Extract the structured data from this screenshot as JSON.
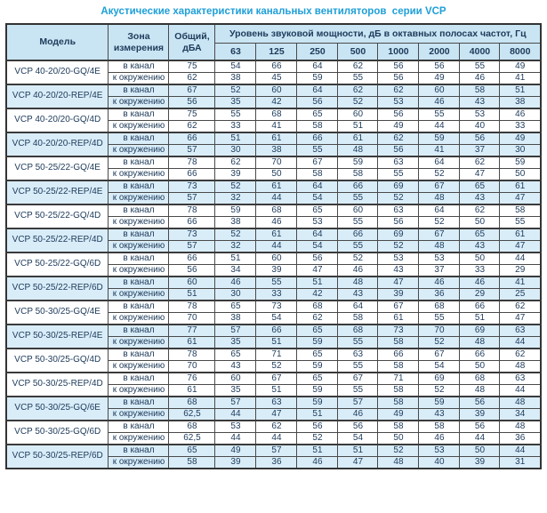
{
  "title": "Акустические характеристики канальных вентиляторов  серии VCP",
  "colors": {
    "title": "#1e9fd8",
    "header_bg": "#c9e5f4",
    "highlight_bg": "#d9edf9",
    "border": "#4a4a4a",
    "text": "#1d3a5a"
  },
  "table": {
    "headers": {
      "model": "Модель",
      "zone": "Зона измерения",
      "total": "Общий, дБА",
      "spl": "Уровень звуковой мощности, дБ в октавных полосах частот, Гц",
      "frequencies": [
        "63",
        "125",
        "250",
        "500",
        "1000",
        "2000",
        "4000",
        "8000"
      ]
    },
    "zone_labels": [
      "в канал",
      "к окружению"
    ],
    "rows": [
      {
        "model": "VCP 40-20/20-GQ/4E",
        "highlight": false,
        "duct": {
          "total": "75",
          "bands": [
            "54",
            "66",
            "64",
            "62",
            "56",
            "56",
            "55",
            "49"
          ]
        },
        "ambient": {
          "total": "62",
          "bands": [
            "38",
            "45",
            "59",
            "55",
            "56",
            "49",
            "46",
            "41"
          ]
        }
      },
      {
        "model": "VCP 40-20/20-REP/4E",
        "highlight": true,
        "duct": {
          "total": "67",
          "bands": [
            "52",
            "60",
            "64",
            "62",
            "62",
            "60",
            "58",
            "51"
          ]
        },
        "ambient": {
          "total": "56",
          "bands": [
            "35",
            "42",
            "56",
            "52",
            "53",
            "46",
            "43",
            "38"
          ]
        }
      },
      {
        "model": "VCP 40-20/20-GQ/4D",
        "highlight": false,
        "duct": {
          "total": "75",
          "bands": [
            "55",
            "68",
            "65",
            "60",
            "56",
            "55",
            "53",
            "46"
          ]
        },
        "ambient": {
          "total": "62",
          "bands": [
            "33",
            "41",
            "58",
            "51",
            "49",
            "44",
            "40",
            "33"
          ]
        }
      },
      {
        "model": "VCP 40-20/20-REP/4D",
        "highlight": true,
        "duct": {
          "total": "66",
          "bands": [
            "51",
            "61",
            "66",
            "61",
            "62",
            "59",
            "56",
            "49"
          ]
        },
        "ambient": {
          "total": "57",
          "bands": [
            "30",
            "38",
            "55",
            "48",
            "56",
            "41",
            "37",
            "30"
          ]
        }
      },
      {
        "model": "VCP 50-25/22-GQ/4E",
        "highlight": false,
        "duct": {
          "total": "78",
          "bands": [
            "62",
            "70",
            "67",
            "59",
            "63",
            "64",
            "62",
            "59"
          ]
        },
        "ambient": {
          "total": "66",
          "bands": [
            "39",
            "50",
            "58",
            "58",
            "55",
            "52",
            "47",
            "50"
          ]
        }
      },
      {
        "model": "VCP 50-25/22-REP/4E",
        "highlight": true,
        "duct": {
          "total": "73",
          "bands": [
            "52",
            "61",
            "64",
            "66",
            "69",
            "67",
            "65",
            "61"
          ]
        },
        "ambient": {
          "total": "57",
          "bands": [
            "32",
            "44",
            "54",
            "55",
            "52",
            "48",
            "43",
            "47"
          ]
        }
      },
      {
        "model": "VCP 50-25/22-GQ/4D",
        "highlight": false,
        "duct": {
          "total": "78",
          "bands": [
            "59",
            "68",
            "65",
            "60",
            "63",
            "64",
            "62",
            "58"
          ]
        },
        "ambient": {
          "total": "66",
          "bands": [
            "38",
            "46",
            "53",
            "55",
            "56",
            "52",
            "50",
            "55"
          ]
        }
      },
      {
        "model": "VCP 50-25/22-REP/4D",
        "highlight": true,
        "duct": {
          "total": "73",
          "bands": [
            "52",
            "61",
            "64",
            "66",
            "69",
            "67",
            "65",
            "61"
          ]
        },
        "ambient": {
          "total": "57",
          "bands": [
            "32",
            "44",
            "54",
            "55",
            "52",
            "48",
            "43",
            "47"
          ]
        }
      },
      {
        "model": "VCP 50-25/22-GQ/6D",
        "highlight": false,
        "duct": {
          "total": "66",
          "bands": [
            "51",
            "60",
            "56",
            "52",
            "53",
            "53",
            "50",
            "44"
          ]
        },
        "ambient": {
          "total": "56",
          "bands": [
            "34",
            "39",
            "47",
            "46",
            "43",
            "37",
            "33",
            "29"
          ]
        }
      },
      {
        "model": "VCP 50-25/22-REP/6D",
        "highlight": true,
        "duct": {
          "total": "60",
          "bands": [
            "46",
            "55",
            "51",
            "48",
            "47",
            "46",
            "46",
            "41"
          ]
        },
        "ambient": {
          "total": "51",
          "bands": [
            "30",
            "33",
            "42",
            "43",
            "39",
            "36",
            "29",
            "25"
          ]
        }
      },
      {
        "model": "VCP 50-30/25-GQ/4E",
        "highlight": false,
        "duct": {
          "total": "78",
          "bands": [
            "65",
            "73",
            "68",
            "64",
            "67",
            "68",
            "66",
            "62"
          ]
        },
        "ambient": {
          "total": "70",
          "bands": [
            "38",
            "54",
            "62",
            "58",
            "61",
            "55",
            "51",
            "47"
          ]
        }
      },
      {
        "model": "VCP 50-30/25-REP/4E",
        "highlight": true,
        "duct": {
          "total": "77",
          "bands": [
            "57",
            "66",
            "65",
            "68",
            "73",
            "70",
            "69",
            "63"
          ]
        },
        "ambient": {
          "total": "61",
          "bands": [
            "35",
            "51",
            "59",
            "55",
            "58",
            "52",
            "48",
            "44"
          ]
        }
      },
      {
        "model": "VCP 50-30/25-GQ/4D",
        "highlight": false,
        "duct": {
          "total": "78",
          "bands": [
            "65",
            "71",
            "65",
            "63",
            "66",
            "67",
            "66",
            "62"
          ]
        },
        "ambient": {
          "total": "70",
          "bands": [
            "43",
            "52",
            "59",
            "55",
            "58",
            "54",
            "50",
            "48"
          ]
        }
      },
      {
        "model": "VCP 50-30/25-REP/4D",
        "highlight": false,
        "duct": {
          "total": "76",
          "bands": [
            "60",
            "67",
            "65",
            "67",
            "71",
            "69",
            "68",
            "63"
          ]
        },
        "ambient": {
          "total": "61",
          "bands": [
            "35",
            "51",
            "59",
            "55",
            "58",
            "52",
            "48",
            "44"
          ]
        }
      },
      {
        "model": "VCP 50-30/25-GQ/6E",
        "highlight": true,
        "duct": {
          "total": "68",
          "bands": [
            "57",
            "63",
            "59",
            "57",
            "58",
            "59",
            "56",
            "48"
          ]
        },
        "ambient": {
          "total": "62,5",
          "bands": [
            "44",
            "47",
            "51",
            "46",
            "49",
            "43",
            "39",
            "34"
          ]
        }
      },
      {
        "model": "VCP 50-30/25-GQ/6D",
        "highlight": false,
        "duct": {
          "total": "68",
          "bands": [
            "53",
            "62",
            "56",
            "56",
            "58",
            "58",
            "56",
            "48"
          ]
        },
        "ambient": {
          "total": "62,5",
          "bands": [
            "44",
            "44",
            "52",
            "54",
            "50",
            "46",
            "44",
            "36"
          ]
        }
      },
      {
        "model": "VCP 50-30/25-REP/6D",
        "highlight": true,
        "duct": {
          "total": "65",
          "bands": [
            "49",
            "57",
            "51",
            "51",
            "52",
            "53",
            "50",
            "44"
          ]
        },
        "ambient": {
          "total": "58",
          "bands": [
            "39",
            "36",
            "46",
            "47",
            "48",
            "40",
            "39",
            "31"
          ]
        }
      }
    ]
  }
}
